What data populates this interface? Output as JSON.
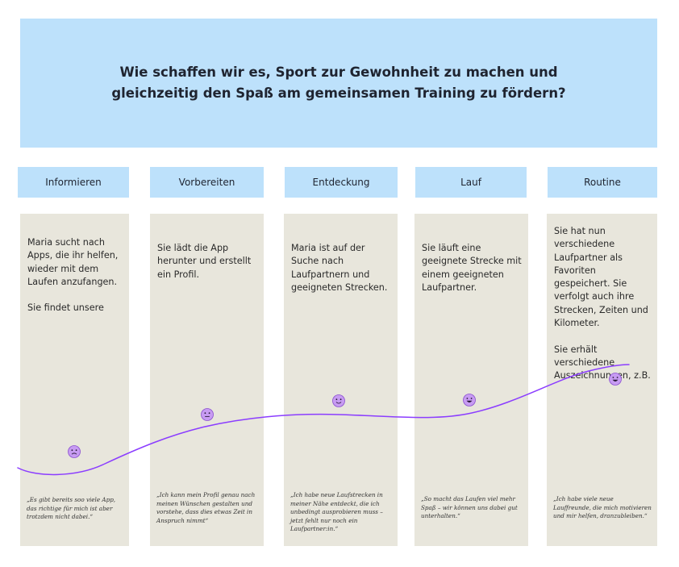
{
  "header": {
    "title": "Wie schaffen wir es, Sport zur Gewohnheit zu machen und gleichzeitig den Spaß am gemeinsamen Training zu fördern?"
  },
  "colors": {
    "header_bg": "#bde1fb",
    "card_bg": "#e8e6dc",
    "emotion_line": "#8b3dff",
    "emoji_fill": "#c79bf2"
  },
  "phases": [
    {
      "label": "Informieren",
      "text": "Maria sucht nach Apps, die ihr helfen, wieder mit dem Laufen anzufangen.\n\nSie findet unsere App.",
      "quote": "„Es gibt bereits soo viele App, das richtige für mich ist aber trotzdem nicht dabei.“",
      "emotion": "sad",
      "emoji_icon": "sad-face-icon"
    },
    {
      "label": "Vorbereiten",
      "text": "Sie lädt die App herunter und erstellt ein Profil.",
      "quote": "„Ich kann mein Profil genau nach meinen Wünschen gestalten und vorstehe, dass dies etwas Zeit in Anspruch nimmt“",
      "emotion": "neutral",
      "emoji_icon": "neutral-face-icon"
    },
    {
      "label": "Entdeckung",
      "text": "Maria ist auf der Suche nach Laufpartnern und geeigneten Strecken.",
      "quote": "„Ich habe neue Laufstrecken in meiner Nähe entdeckt, die ich unbedingt ausprobieren muss – jetzt fehlt nur noch ein Laufpartner:in.“",
      "emotion": "happy",
      "emoji_icon": "smiling-face-icon"
    },
    {
      "label": "Lauf",
      "text": "Sie läuft eine geeignete Strecke mit einem geeigneten Laufpartner.",
      "quote": "„So macht das Laufen viel mehr Spaß – wir können uns dabei gut unterhalten.“",
      "emotion": "very-happy",
      "emoji_icon": "grinning-face-icon"
    },
    {
      "label": "Routine",
      "text": "Sie hat nun verschiedene Laufpartner als Favoriten gespeichert. Sie verfolgt auch ihre Strecken, Zeiten und Kilometer.\n\nSie erhält verschiedene Auszeichnungen, z.B. für Kilometer oder Geschwindigkeit.",
      "quote": "„Ich habe viele neue Lauffreunde, die mich motivieren und mir helfen, dranzubleiben.“",
      "emotion": "very-happy",
      "emoji_icon": "grinning-face-icon"
    }
  ]
}
